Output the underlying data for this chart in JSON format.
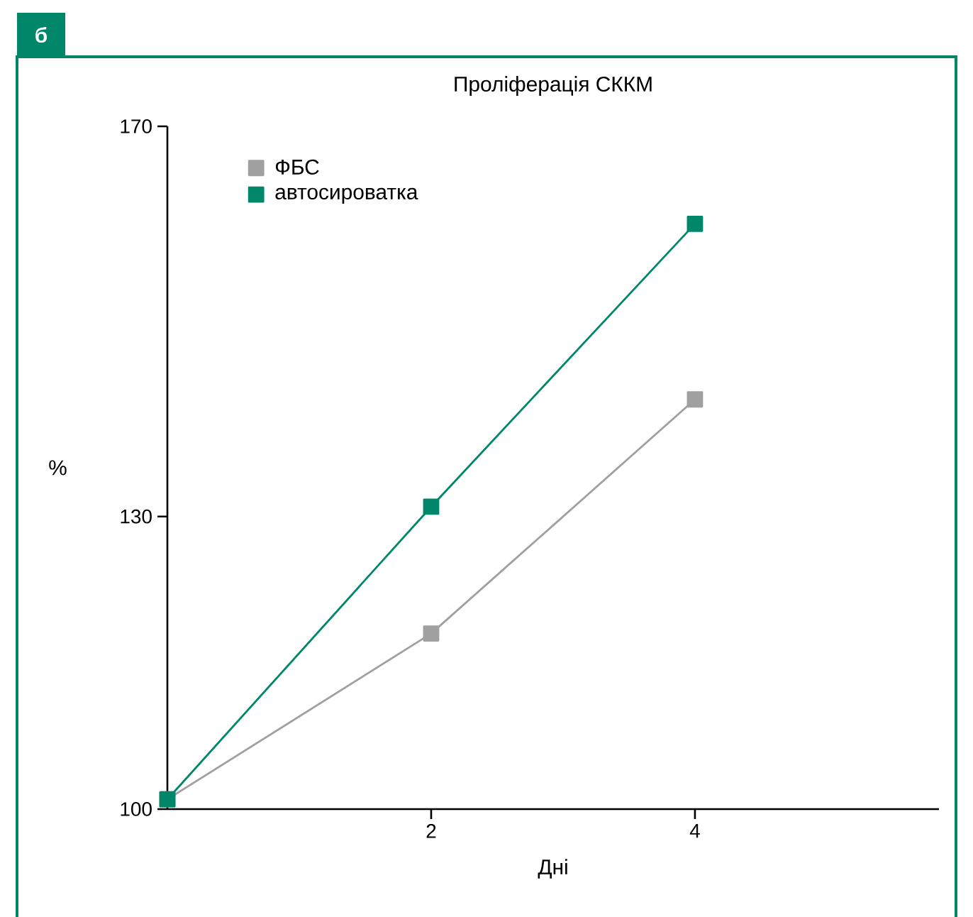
{
  "chart_data": {
    "type": "line",
    "title": "Проліферація СККМ",
    "xlabel": "Дні",
    "ylabel": "%",
    "x": [
      0,
      2,
      4
    ],
    "xlim": [
      0,
      5.85
    ],
    "xticks": [
      2,
      4
    ],
    "ylim": [
      100,
      170
    ],
    "yticks": [
      100,
      130,
      170
    ],
    "legend": "top left",
    "marker": "square",
    "line_style": "solid",
    "grid": false,
    "annotations": [
      "б"
    ],
    "series": [
      {
        "name": "ФБС",
        "color": "#a0a0a0",
        "values": [
          101,
          118,
          142
        ]
      },
      {
        "name": "автосироватка",
        "color": "#00876a",
        "values": [
          101,
          131,
          160
        ]
      }
    ]
  }
}
